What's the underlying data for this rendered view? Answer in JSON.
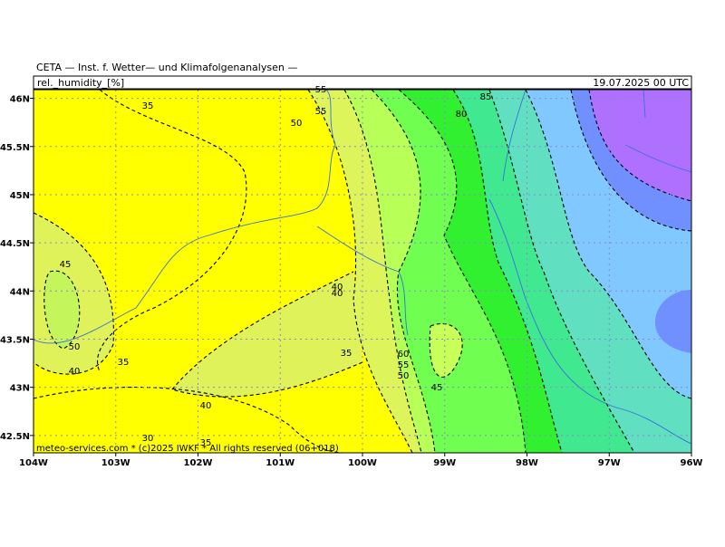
{
  "header": {
    "title": "CETA — Inst. f. Wetter— und Klimafolgenanalysen —",
    "field": "rel._humidity_[%]",
    "valid_time": "19.07.2025 00 UTC"
  },
  "map": {
    "xlim": [
      -104,
      -96
    ],
    "ylim": [
      42.32,
      46.09
    ],
    "xticks": [
      {
        "value": -104,
        "label": "104W"
      },
      {
        "value": -103,
        "label": "103W"
      },
      {
        "value": -102,
        "label": "102W"
      },
      {
        "value": -101,
        "label": "101W"
      },
      {
        "value": -100,
        "label": "100W"
      },
      {
        "value": -99,
        "label": "99W"
      },
      {
        "value": -98,
        "label": "98W"
      },
      {
        "value": -97,
        "label": "97W"
      },
      {
        "value": -96,
        "label": "96W"
      }
    ],
    "yticks": [
      {
        "value": 42.5,
        "label": "42.5N"
      },
      {
        "value": 43,
        "label": "43N"
      },
      {
        "value": 43.5,
        "label": "43.5N"
      },
      {
        "value": 44,
        "label": "44N"
      },
      {
        "value": 44.5,
        "label": "44.5N"
      },
      {
        "value": 45,
        "label": "45N"
      },
      {
        "value": 45.5,
        "label": "45.5N"
      },
      {
        "value": 46,
        "label": "46N"
      }
    ],
    "contour_labels": [
      35,
      55,
      85,
      50,
      55,
      80,
      45,
      50,
      40,
      35,
      40,
      40,
      35,
      60,
      55,
      50,
      45,
      40,
      30,
      35
    ],
    "footer": "meteo-services.com * (c)2025 IWKF * All rights reserved (06+018)"
  }
}
